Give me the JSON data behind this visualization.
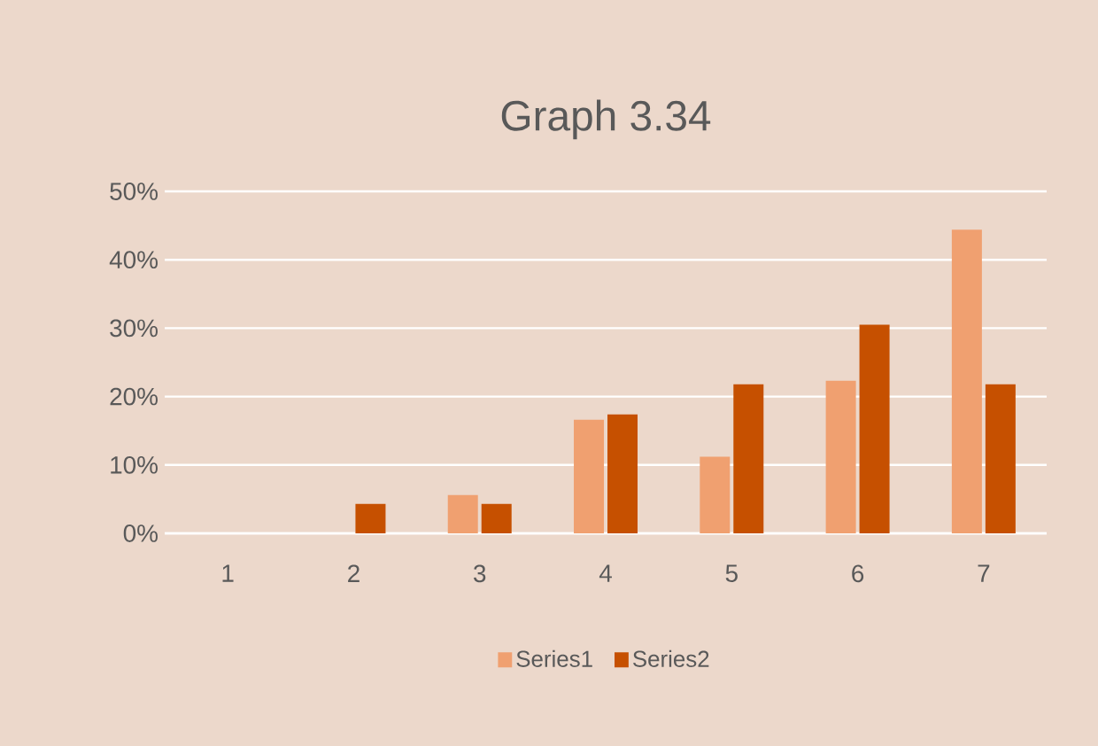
{
  "chart_data": {
    "type": "bar",
    "title": "Graph 3.34",
    "categories": [
      "1",
      "2",
      "3",
      "4",
      "5",
      "6",
      "7"
    ],
    "series": [
      {
        "name": "Series1",
        "color": "#f0a070",
        "values": [
          0,
          0,
          5.6,
          16.6,
          11.2,
          22.3,
          44.4
        ]
      },
      {
        "name": "Series2",
        "color": "#c65000",
        "values": [
          0,
          4.3,
          4.3,
          17.4,
          21.8,
          30.5,
          21.8
        ]
      }
    ],
    "ylim": [
      0,
      50
    ],
    "yticks": [
      {
        "value": 0,
        "label": "0%"
      },
      {
        "value": 10,
        "label": "10%"
      },
      {
        "value": 20,
        "label": "20%"
      },
      {
        "value": 30,
        "label": "30%"
      },
      {
        "value": 40,
        "label": "40%"
      },
      {
        "value": 50,
        "label": "50%"
      }
    ],
    "grid": "y",
    "legend": "bottom"
  }
}
